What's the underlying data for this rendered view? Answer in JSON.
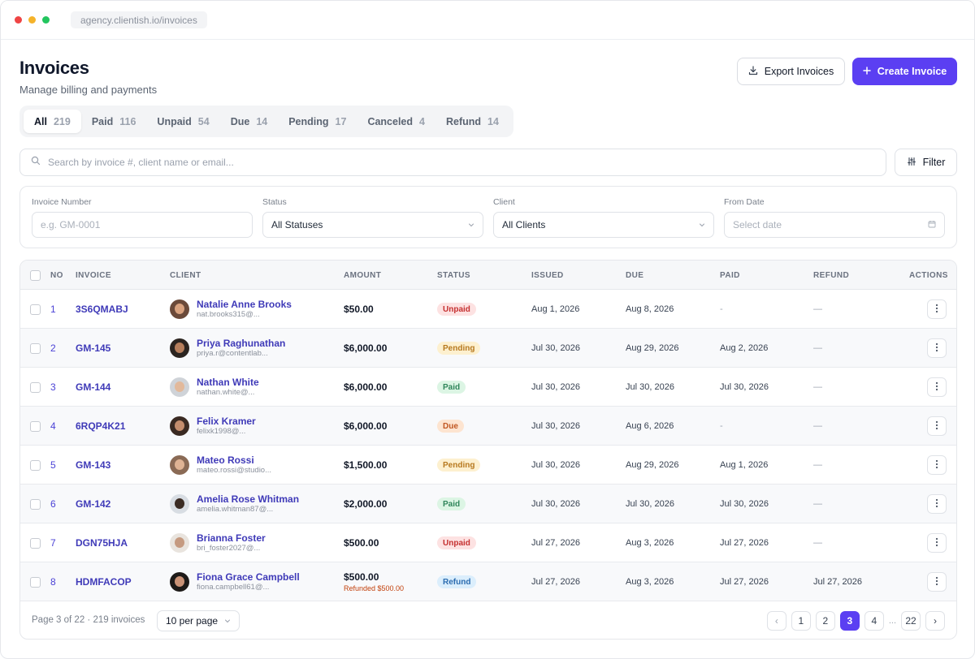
{
  "browser": {
    "url": "agency.clientish.io/invoices"
  },
  "page": {
    "title": "Invoices",
    "subtitle": "Manage billing and payments"
  },
  "actions": {
    "export_label": "Export Invoices",
    "create_label": "Create Invoice"
  },
  "tabs": [
    {
      "label": "All",
      "count": "219",
      "active": true
    },
    {
      "label": "Paid",
      "count": "116"
    },
    {
      "label": "Unpaid",
      "count": "54"
    },
    {
      "label": "Due",
      "count": "14"
    },
    {
      "label": "Pending",
      "count": "17"
    },
    {
      "label": "Canceled",
      "count": "4"
    },
    {
      "label": "Refund",
      "count": "14"
    }
  ],
  "search": {
    "placeholder": "Search by invoice #, client name or email...",
    "filter_label": "Filter"
  },
  "filters": {
    "invoice_number": {
      "label": "Invoice Number",
      "placeholder": "e.g. GM-0001"
    },
    "status": {
      "label": "Status",
      "value": "All Statuses"
    },
    "client": {
      "label": "Client",
      "value": "All Clients"
    },
    "from_date": {
      "label": "From Date",
      "placeholder": "Select date"
    }
  },
  "table": {
    "columns": [
      "NO",
      "INVOICE",
      "CLIENT",
      "AMOUNT",
      "STATUS",
      "ISSUED",
      "DUE",
      "PAID",
      "REFUND",
      "ACTIONS"
    ],
    "rows": [
      {
        "no": "1",
        "invoice": "3S6QMABJ",
        "client_name": "Natalie Anne Brooks",
        "client_email": "nat.brooks315@...",
        "amount": "$50.00",
        "refund_note": "",
        "status": "Unpaid",
        "issued": "Aug 1, 2026",
        "due": "Aug 8, 2026",
        "paid": "-",
        "refund": "—",
        "avatar": {
          "bg": "#6b4a3a",
          "face": "#d9a27f"
        }
      },
      {
        "no": "2",
        "invoice": "GM-145",
        "client_name": "Priya Raghunathan",
        "client_email": "priya.r@contentlab...",
        "amount": "$6,000.00",
        "refund_note": "",
        "status": "Pending",
        "issued": "Jul 30, 2026",
        "due": "Aug 29, 2026",
        "paid": "Aug 2, 2026",
        "refund": "—",
        "avatar": {
          "bg": "#2b2420",
          "face": "#b67e5c"
        }
      },
      {
        "no": "3",
        "invoice": "GM-144",
        "client_name": "Nathan White",
        "client_email": "nathan.white@...",
        "amount": "$6,000.00",
        "refund_note": "",
        "status": "Paid",
        "issued": "Jul 30, 2026",
        "due": "Jul 30, 2026",
        "paid": "Jul 30, 2026",
        "refund": "—",
        "avatar": {
          "bg": "#cfd3d8",
          "face": "#e2b99b"
        }
      },
      {
        "no": "4",
        "invoice": "6RQP4K21",
        "client_name": "Felix Kramer",
        "client_email": "felixk1998@...",
        "amount": "$6,000.00",
        "refund_note": "",
        "status": "Due",
        "issued": "Jul 30, 2026",
        "due": "Aug 6, 2026",
        "paid": "-",
        "refund": "—",
        "avatar": {
          "bg": "#3a2a22",
          "face": "#c48d6d"
        }
      },
      {
        "no": "5",
        "invoice": "GM-143",
        "client_name": "Mateo Rossi",
        "client_email": "mateo.rossi@studio...",
        "amount": "$1,500.00",
        "refund_note": "",
        "status": "Pending",
        "issued": "Jul 30, 2026",
        "due": "Aug 29, 2026",
        "paid": "Aug 1, 2026",
        "refund": "—",
        "avatar": {
          "bg": "#8a6a55",
          "face": "#dfb394"
        }
      },
      {
        "no": "6",
        "invoice": "GM-142",
        "client_name": "Amelia Rose Whitman",
        "client_email": "amelia.whitman87@...",
        "amount": "$2,000.00",
        "refund_note": "",
        "status": "Paid",
        "issued": "Jul 30, 2026",
        "due": "Jul 30, 2026",
        "paid": "Jul 30, 2026",
        "refund": "—",
        "avatar": {
          "bg": "#d8dde3",
          "face": "#3b2c24"
        }
      },
      {
        "no": "7",
        "invoice": "DGN75HJA",
        "client_name": "Brianna Foster",
        "client_email": "bri_foster2027@...",
        "amount": "$500.00",
        "refund_note": "",
        "status": "Unpaid",
        "issued": "Jul 27, 2026",
        "due": "Aug 3, 2026",
        "paid": "Jul 27, 2026",
        "refund": "—",
        "avatar": {
          "bg": "#e9e4de",
          "face": "#c59a80"
        }
      },
      {
        "no": "8",
        "invoice": "HDMFACOP",
        "client_name": "Fiona Grace Campbell",
        "client_email": "fiona.campbell61@...",
        "amount": "$500.00",
        "refund_note": "Refunded $500.00",
        "status": "Refund",
        "issued": "Jul 27, 2026",
        "due": "Aug 3, 2026",
        "paid": "Jul 27, 2026",
        "refund": "Jul 27, 2026",
        "avatar": {
          "bg": "#1d1a18",
          "face": "#c99276"
        }
      }
    ]
  },
  "status_colors": {
    "Unpaid": {
      "bg": "#fde2e2",
      "fg": "#c53030"
    },
    "Pending": {
      "bg": "#fdf0cf",
      "fg": "#b7791f"
    },
    "Paid": {
      "bg": "#dcf5e4",
      "fg": "#2f855a"
    },
    "Due": {
      "bg": "#fde4d0",
      "fg": "#c05621"
    },
    "Refund": {
      "bg": "#dbeefc",
      "fg": "#2b6cb0"
    }
  },
  "pagination": {
    "info": "Page 3 of 22 · 219 invoices",
    "per_page": "10 per page",
    "prev": "‹",
    "next": "›",
    "pages": [
      "1",
      "2",
      "3",
      "4"
    ],
    "current": "3",
    "ellipsis": "...",
    "last": "22"
  },
  "icons": {
    "export": "download-icon",
    "create": "plus-icon",
    "search": "search-icon",
    "filter": "sliders-icon",
    "calendar": "calendar-icon",
    "chevron": "chevron-down-icon",
    "actions": "more-vertical-icon"
  }
}
